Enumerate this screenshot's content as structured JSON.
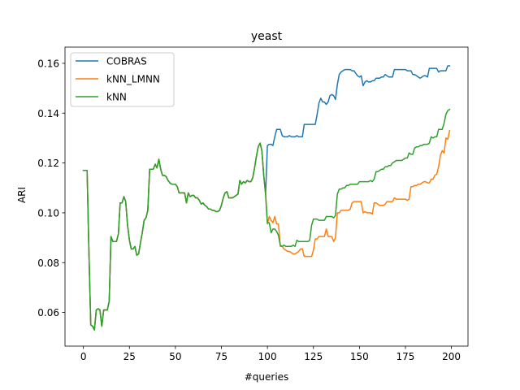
{
  "chart_data": {
    "type": "line",
    "title": "yeast",
    "xlabel": "#queries",
    "ylabel": "ARI",
    "xlim": [
      -10,
      209
    ],
    "ylim": [
      0.0465,
      0.1665
    ],
    "x_ticks": [
      0,
      25,
      50,
      75,
      100,
      125,
      150,
      175,
      200
    ],
    "y_ticks": [
      0.06,
      0.08,
      0.1,
      0.12,
      0.14,
      0.16
    ],
    "y_tick_labels": [
      "0.06",
      "0.08",
      "0.10",
      "0.12",
      "0.14",
      "0.16"
    ],
    "grid": false,
    "legend_position": "top-left",
    "shared": {
      "x": [
        0,
        2,
        3,
        4,
        5,
        6,
        7,
        8,
        9,
        10,
        11,
        12,
        13,
        14,
        15,
        16,
        17,
        18,
        19,
        20,
        21,
        22,
        23,
        24,
        25,
        26,
        27,
        28,
        29,
        30,
        31,
        32,
        33,
        34,
        35,
        36,
        37,
        38,
        39,
        40,
        41,
        42,
        43,
        44,
        45,
        46,
        47,
        48,
        49,
        50,
        51,
        52,
        53,
        54,
        55,
        56,
        57,
        58,
        59,
        60,
        61,
        62,
        63,
        64,
        65,
        66,
        67,
        68,
        69,
        70,
        71,
        72,
        73,
        74,
        75,
        76,
        77,
        78,
        79,
        80,
        81,
        82,
        83,
        84,
        85,
        86,
        87,
        88,
        89,
        90,
        91,
        92,
        93,
        94,
        95,
        96,
        97,
        98,
        99
      ],
      "y": [
        0.117,
        0.117,
        0.085,
        0.055,
        0.0545,
        0.053,
        0.061,
        0.0615,
        0.061,
        0.0545,
        0.061,
        0.061,
        0.061,
        0.0645,
        0.0905,
        0.0885,
        0.0885,
        0.0885,
        0.0915,
        0.104,
        0.104,
        0.1065,
        0.1045,
        0.095,
        0.089,
        0.0855,
        0.0855,
        0.0865,
        0.083,
        0.0835,
        0.088,
        0.092,
        0.097,
        0.098,
        0.101,
        0.1175,
        0.1175,
        0.1175,
        0.1195,
        0.118,
        0.1215,
        0.1175,
        0.115,
        0.115,
        0.1145,
        0.113,
        0.112,
        0.1115,
        0.1115,
        0.1115,
        0.1105,
        0.108,
        0.108,
        0.108,
        0.108,
        0.104,
        0.108,
        0.1065,
        0.107,
        0.107,
        0.106,
        0.106,
        0.105,
        0.1035,
        0.104,
        0.103,
        0.1025,
        0.1015,
        0.1015,
        0.101,
        0.101,
        0.1005,
        0.1005,
        0.101,
        0.103,
        0.106,
        0.108,
        0.1085,
        0.106,
        0.106,
        0.106,
        0.1065,
        0.107,
        0.1075,
        0.113,
        0.1115,
        0.1125,
        0.112,
        0.113,
        0.1125,
        0.1125,
        0.114,
        0.118,
        0.1225,
        0.1265,
        0.128,
        0.125,
        0.115,
        0.1075
      ]
    },
    "series": [
      {
        "name": "COBRAS",
        "color": "#1f77b4",
        "x": [
          100,
          101,
          102,
          103,
          104,
          105,
          106,
          107,
          108,
          109,
          110,
          111,
          112,
          113,
          114,
          115,
          116,
          117,
          118,
          119,
          120,
          121,
          122,
          123,
          124,
          125,
          126,
          127,
          128,
          129,
          130,
          131,
          132,
          133,
          134,
          135,
          136,
          137,
          138,
          139,
          140,
          141,
          142,
          143,
          144,
          145,
          146,
          147,
          148,
          149,
          150,
          151,
          152,
          153,
          154,
          155,
          156,
          157,
          158,
          159,
          160,
          161,
          162,
          163,
          164,
          165,
          166,
          167,
          168,
          169,
          170,
          171,
          172,
          173,
          174,
          175,
          176,
          177,
          178,
          179,
          180,
          181,
          182,
          183,
          184,
          185,
          186,
          187,
          188,
          189,
          190,
          191,
          192,
          193,
          194,
          195,
          196,
          197,
          198,
          199
        ],
        "values": [
          0.127,
          0.1275,
          0.1275,
          0.127,
          0.1305,
          0.1335,
          0.1335,
          0.1335,
          0.131,
          0.1305,
          0.1305,
          0.1305,
          0.131,
          0.1305,
          0.1305,
          0.1305,
          0.131,
          0.1305,
          0.1305,
          0.1305,
          0.1355,
          0.1355,
          0.1355,
          0.1355,
          0.1355,
          0.1355,
          0.1355,
          0.1395,
          0.144,
          0.146,
          0.1445,
          0.1445,
          0.1435,
          0.1445,
          0.147,
          0.1475,
          0.147,
          0.1455,
          0.1515,
          0.1555,
          0.1565,
          0.157,
          0.1575,
          0.1575,
          0.1575,
          0.1575,
          0.157,
          0.157,
          0.156,
          0.155,
          0.1545,
          0.155,
          0.151,
          0.1525,
          0.153,
          0.1525,
          0.1525,
          0.153,
          0.153,
          0.154,
          0.154,
          0.154,
          0.1545,
          0.1545,
          0.1555,
          0.155,
          0.1545,
          0.1545,
          0.1545,
          0.1575,
          0.1575,
          0.1575,
          0.1575,
          0.1575,
          0.1575,
          0.1575,
          0.157,
          0.157,
          0.157,
          0.1555,
          0.1555,
          0.155,
          0.1545,
          0.154,
          0.1545,
          0.155,
          0.155,
          0.1545,
          0.158,
          0.158,
          0.158,
          0.158,
          0.158,
          0.1565,
          0.157,
          0.157,
          0.157,
          0.157,
          0.159,
          0.159
        ]
      },
      {
        "name": "kNN_LMNN",
        "color": "#ff7f0e",
        "x": [
          100,
          101,
          102,
          103,
          104,
          105,
          106,
          107,
          108,
          109,
          110,
          111,
          112,
          113,
          114,
          115,
          116,
          117,
          118,
          119,
          120,
          121,
          122,
          123,
          124,
          125,
          126,
          127,
          128,
          129,
          130,
          131,
          132,
          133,
          134,
          135,
          136,
          137,
          138,
          139,
          140,
          141,
          142,
          143,
          144,
          145,
          146,
          147,
          148,
          149,
          150,
          151,
          152,
          153,
          154,
          155,
          156,
          157,
          158,
          159,
          160,
          161,
          162,
          163,
          164,
          165,
          166,
          167,
          168,
          169,
          170,
          171,
          172,
          173,
          174,
          175,
          176,
          177,
          178,
          179,
          180,
          181,
          182,
          183,
          184,
          185,
          186,
          187,
          188,
          189,
          190,
          191,
          192,
          193,
          194,
          195,
          196,
          197,
          198,
          199
        ],
        "values": [
          0.0955,
          0.0985,
          0.097,
          0.096,
          0.0985,
          0.0955,
          0.0955,
          0.0865,
          0.0865,
          0.0855,
          0.085,
          0.0845,
          0.0845,
          0.084,
          0.0835,
          0.0835,
          0.084,
          0.0845,
          0.0855,
          0.0855,
          0.0825,
          0.0825,
          0.0825,
          0.0825,
          0.0825,
          0.085,
          0.0895,
          0.0895,
          0.0905,
          0.0905,
          0.0905,
          0.0905,
          0.0935,
          0.0905,
          0.0905,
          0.0905,
          0.0885,
          0.09,
          0.1,
          0.1,
          0.101,
          0.101,
          0.101,
          0.101,
          0.101,
          0.1015,
          0.104,
          0.1045,
          0.1045,
          0.1045,
          0.1045,
          0.1045,
          0.1,
          0.1005,
          0.1,
          0.1,
          0.1,
          0.0995,
          0.104,
          0.104,
          0.1035,
          0.103,
          0.103,
          0.103,
          0.1035,
          0.1045,
          0.1045,
          0.1045,
          0.1045,
          0.106,
          0.1055,
          0.1055,
          0.1055,
          0.1055,
          0.1055,
          0.1055,
          0.105,
          0.1055,
          0.1105,
          0.1105,
          0.111,
          0.111,
          0.1115,
          0.1115,
          0.112,
          0.1125,
          0.1125,
          0.112,
          0.112,
          0.1135,
          0.1135,
          0.115,
          0.1155,
          0.1185,
          0.123,
          0.125,
          0.124,
          0.13,
          0.1295,
          0.133
        ]
      },
      {
        "name": "kNN",
        "color": "#2ca02c",
        "x": [
          100,
          101,
          102,
          103,
          104,
          105,
          106,
          107,
          108,
          109,
          110,
          111,
          112,
          113,
          114,
          115,
          116,
          117,
          118,
          119,
          120,
          121,
          122,
          123,
          124,
          125,
          126,
          127,
          128,
          129,
          130,
          131,
          132,
          133,
          134,
          135,
          136,
          137,
          138,
          139,
          140,
          141,
          142,
          143,
          144,
          145,
          146,
          147,
          148,
          149,
          150,
          151,
          152,
          153,
          154,
          155,
          156,
          157,
          158,
          159,
          160,
          161,
          162,
          163,
          164,
          165,
          166,
          167,
          168,
          169,
          170,
          171,
          172,
          173,
          174,
          175,
          176,
          177,
          178,
          179,
          180,
          181,
          182,
          183,
          184,
          185,
          186,
          187,
          188,
          189,
          190,
          191,
          192,
          193,
          194,
          195,
          196,
          197,
          198,
          199
        ],
        "values": [
          0.096,
          0.096,
          0.092,
          0.0935,
          0.0935,
          0.0925,
          0.091,
          0.087,
          0.0865,
          0.087,
          0.0865,
          0.0865,
          0.0865,
          0.0865,
          0.087,
          0.0865,
          0.089,
          0.0885,
          0.0885,
          0.0885,
          0.0885,
          0.0885,
          0.0885,
          0.089,
          0.095,
          0.0975,
          0.0975,
          0.0975,
          0.097,
          0.097,
          0.097,
          0.097,
          0.0985,
          0.0985,
          0.0985,
          0.0985,
          0.098,
          0.099,
          0.1075,
          0.1095,
          0.1095,
          0.11,
          0.11,
          0.111,
          0.111,
          0.1115,
          0.1115,
          0.1115,
          0.1115,
          0.1115,
          0.1125,
          0.1125,
          0.1125,
          0.1125,
          0.1125,
          0.1125,
          0.113,
          0.1125,
          0.1135,
          0.1165,
          0.1165,
          0.117,
          0.1175,
          0.1175,
          0.1185,
          0.1185,
          0.119,
          0.119,
          0.12,
          0.1205,
          0.121,
          0.121,
          0.121,
          0.121,
          0.1215,
          0.122,
          0.122,
          0.124,
          0.1235,
          0.1235,
          0.126,
          0.1265,
          0.1265,
          0.127,
          0.127,
          0.1275,
          0.1275,
          0.1275,
          0.128,
          0.1305,
          0.13,
          0.1305,
          0.1305,
          0.1335,
          0.1335,
          0.1335,
          0.136,
          0.1395,
          0.141,
          0.1415
        ]
      }
    ]
  }
}
